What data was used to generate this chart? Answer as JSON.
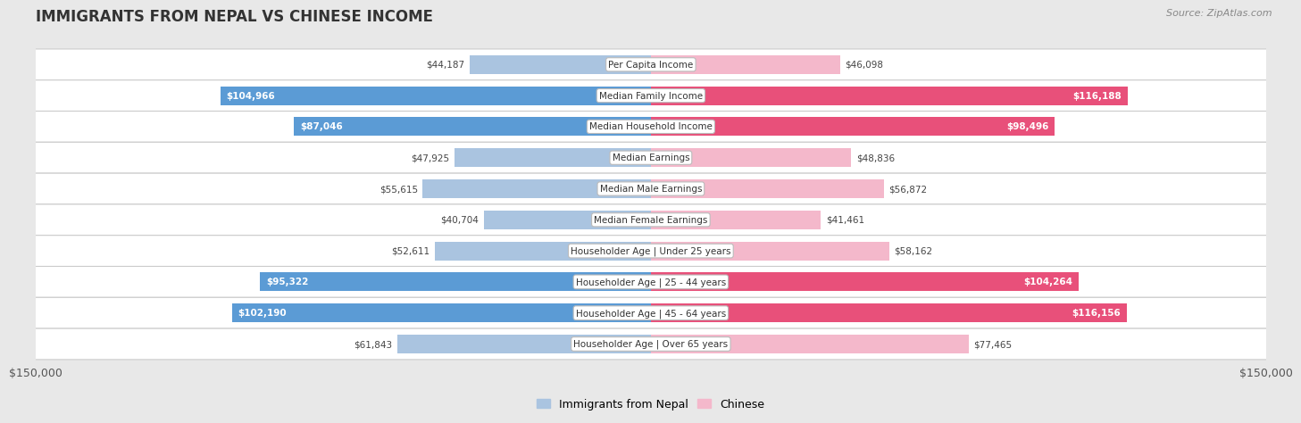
{
  "title": "IMMIGRANTS FROM NEPAL VS CHINESE INCOME",
  "source": "Source: ZipAtlas.com",
  "categories": [
    "Per Capita Income",
    "Median Family Income",
    "Median Household Income",
    "Median Earnings",
    "Median Male Earnings",
    "Median Female Earnings",
    "Householder Age | Under 25 years",
    "Householder Age | 25 - 44 years",
    "Householder Age | 45 - 64 years",
    "Householder Age | Over 65 years"
  ],
  "nepal_values": [
    44187,
    104966,
    87046,
    47925,
    55615,
    40704,
    52611,
    95322,
    102190,
    61843
  ],
  "chinese_values": [
    46098,
    116188,
    98496,
    48836,
    56872,
    41461,
    58162,
    104264,
    116156,
    77465
  ],
  "nepal_labels": [
    "$44,187",
    "$104,966",
    "$87,046",
    "$47,925",
    "$55,615",
    "$40,704",
    "$52,611",
    "$95,322",
    "$102,190",
    "$61,843"
  ],
  "chinese_labels": [
    "$46,098",
    "$116,188",
    "$98,496",
    "$48,836",
    "$56,872",
    "$41,461",
    "$58,162",
    "$104,264",
    "$116,156",
    "$77,465"
  ],
  "nepal_color_light": "#aac4e0",
  "nepal_color_dark": "#5b9bd5",
  "chinese_color_light": "#f4b8cb",
  "chinese_color_dark": "#e8507a",
  "max_value": 150000,
  "bar_height": 0.6,
  "background_color": "#e8e8e8",
  "legend_nepal": "Immigrants from Nepal",
  "legend_chinese": "Chinese",
  "xlabel_left": "$150,000",
  "xlabel_right": "$150,000",
  "nepal_inside_threshold": 80000,
  "chinese_inside_threshold": 80000
}
